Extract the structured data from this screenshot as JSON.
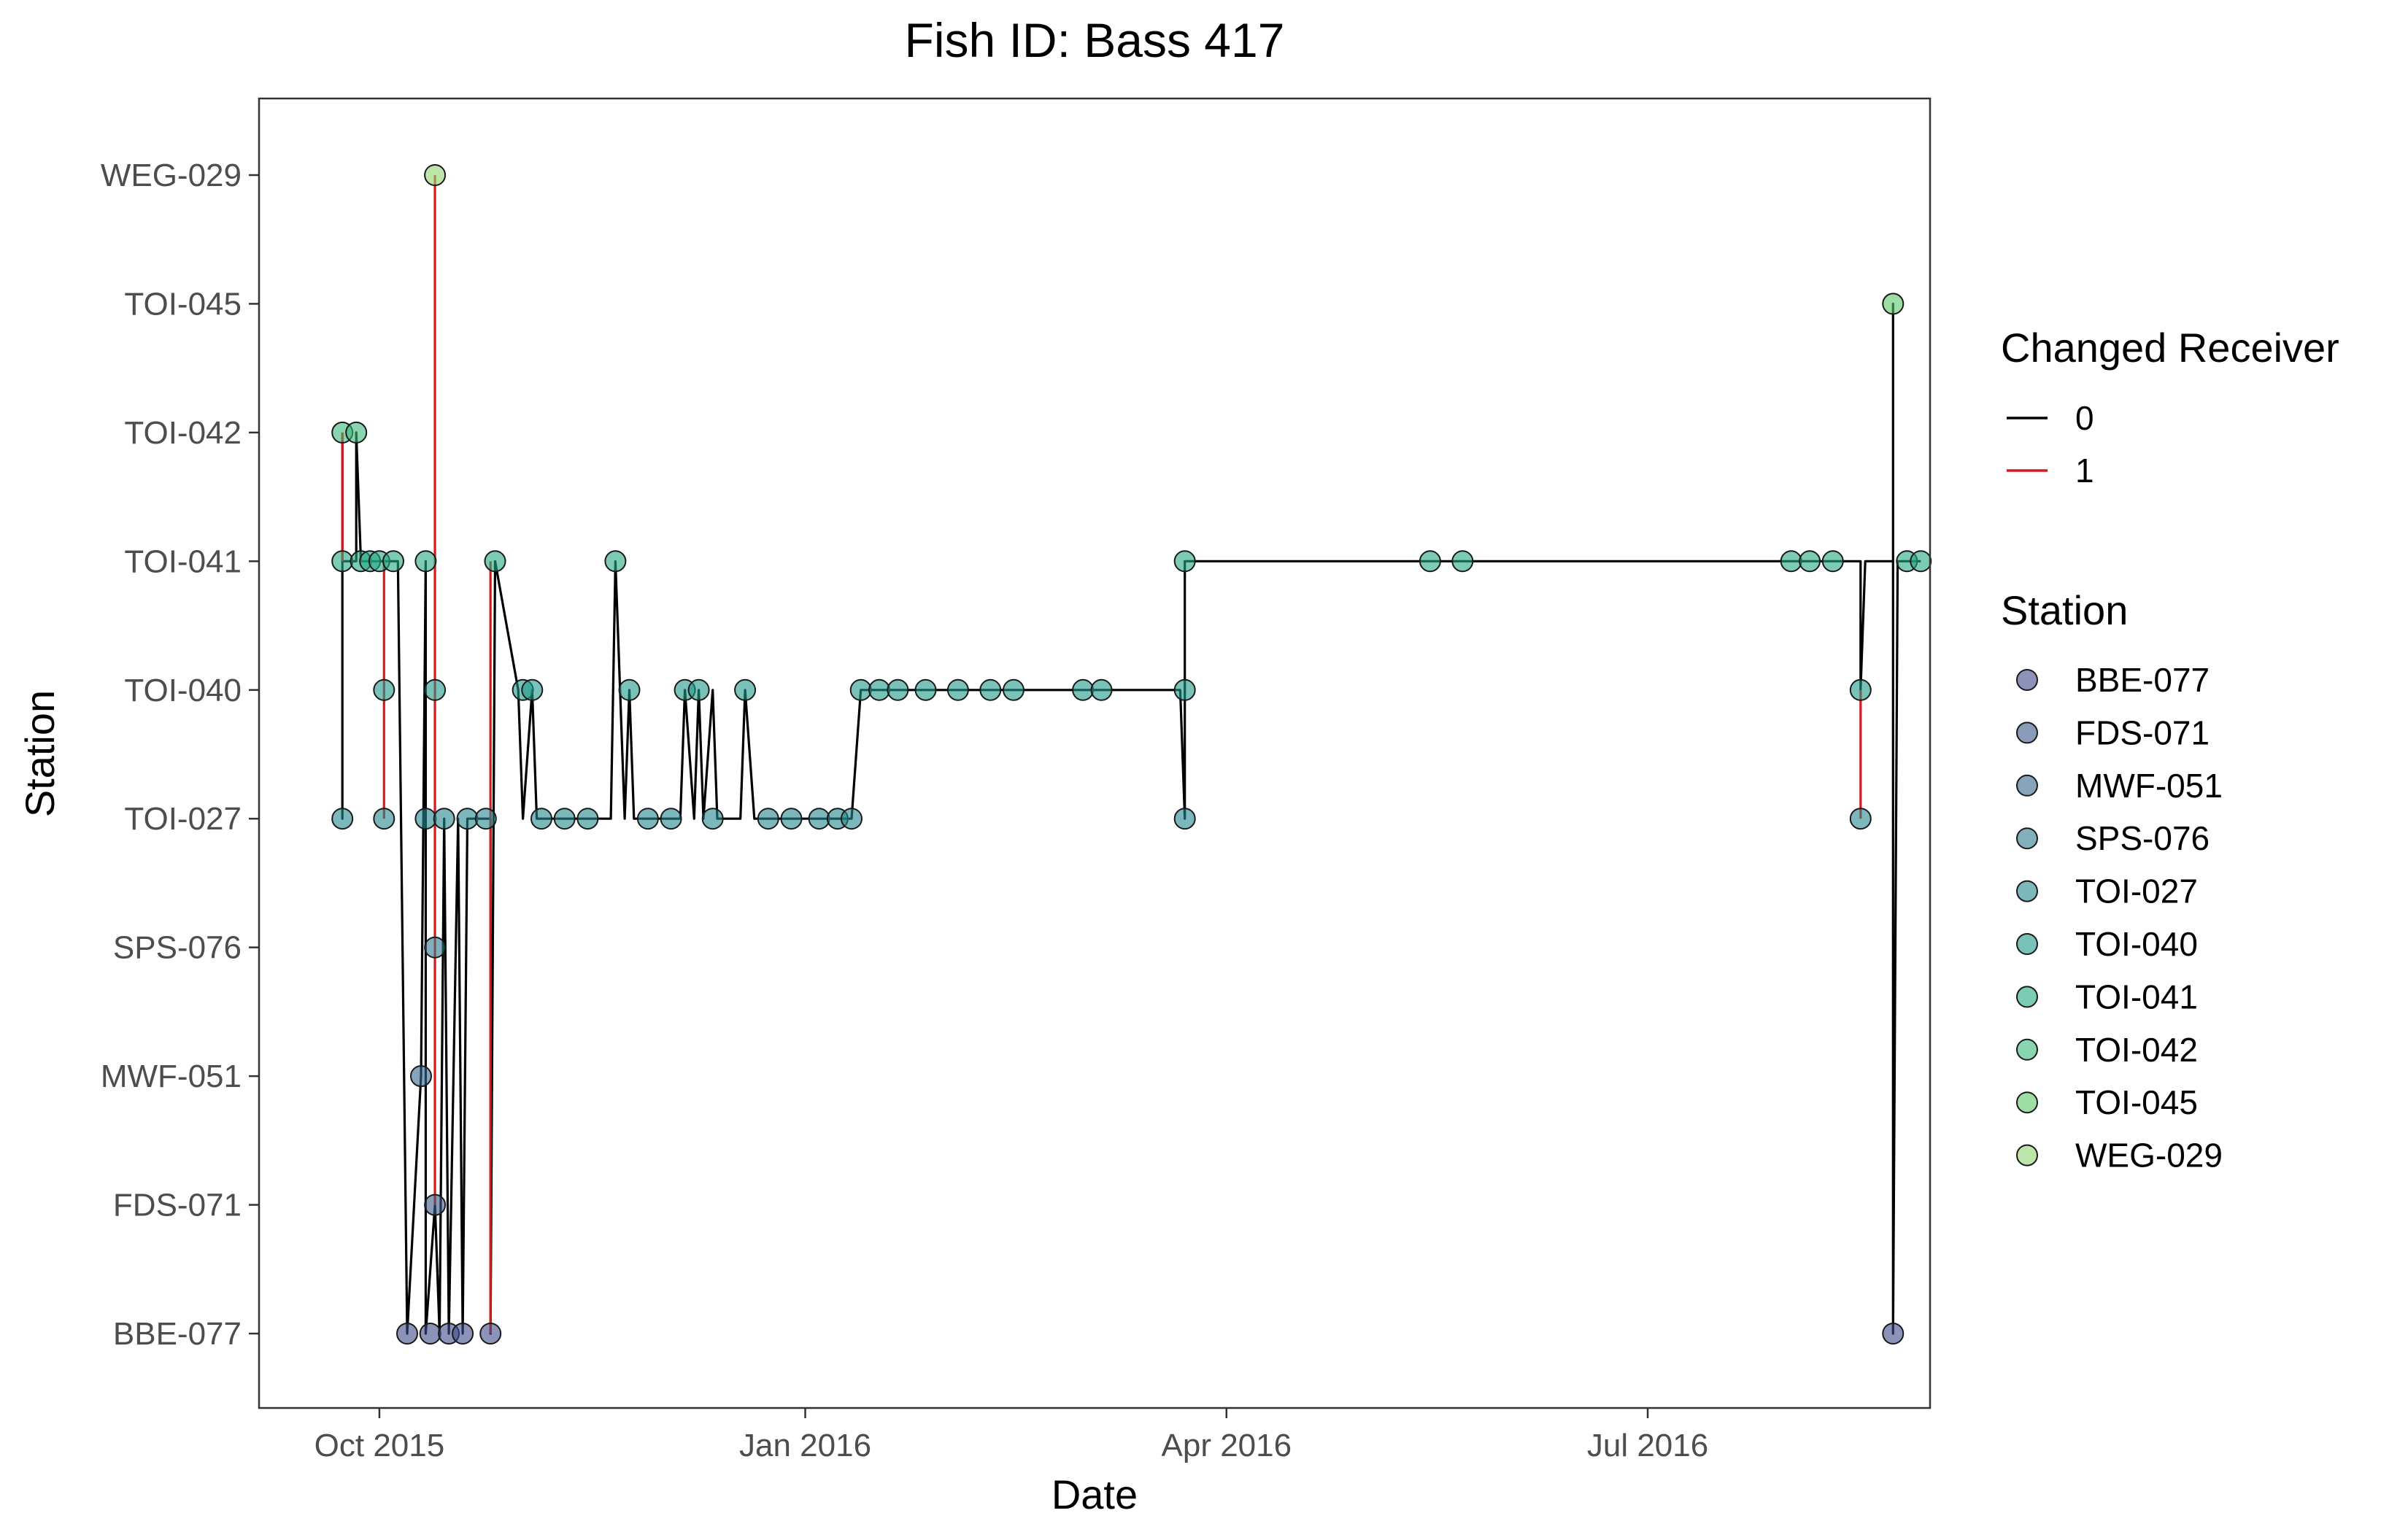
{
  "chart_data": {
    "type": "scatter",
    "title": "Fish ID: Bass 417",
    "xlabel": "Date",
    "ylabel": "Station",
    "x_type": "date",
    "xlim": [
      "2015-09-05",
      "2016-08-31"
    ],
    "x_ticks": [
      {
        "date": "2015-10-01",
        "label": "Oct 2015"
      },
      {
        "date": "2016-01-01",
        "label": "Jan 2016"
      },
      {
        "date": "2016-04-01",
        "label": "Apr 2016"
      },
      {
        "date": "2016-07-01",
        "label": "Jul 2016"
      }
    ],
    "categories": [
      "BBE-077",
      "FDS-071",
      "MWF-051",
      "SPS-076",
      "TOI-027",
      "TOI-040",
      "TOI-041",
      "TOI-042",
      "TOI-045",
      "WEG-029"
    ],
    "grid": false,
    "legend_position": "right",
    "legend": {
      "changed_receiver": {
        "title": "Changed Receiver",
        "items": [
          {
            "label": "0",
            "color": "#000000"
          },
          {
            "label": "1",
            "color": "#d7191c"
          }
        ]
      },
      "station": {
        "title": "Station",
        "items": [
          {
            "label": "BBE-077",
            "color": "#3e4b8a"
          },
          {
            "label": "FDS-071",
            "color": "#3b5a8c"
          },
          {
            "label": "MWF-051",
            "color": "#35688d"
          },
          {
            "label": "SPS-076",
            "color": "#2e7a8e"
          },
          {
            "label": "TOI-027",
            "color": "#24898e"
          },
          {
            "label": "TOI-040",
            "color": "#1f9a8a"
          },
          {
            "label": "TOI-041",
            "color": "#23a883"
          },
          {
            "label": "TOI-042",
            "color": "#3cb77a"
          },
          {
            "label": "TOI-045",
            "color": "#5ec868"
          },
          {
            "label": "WEG-029",
            "color": "#8fd670"
          }
        ]
      }
    },
    "series": [
      {
        "name": "0",
        "color": "#000000",
        "points": [
          {
            "x": "2015-09-23",
            "y": "TOI-042"
          },
          {
            "x": "2015-09-23",
            "y": "TOI-027"
          },
          {
            "x": "2015-09-23",
            "y": "TOI-041"
          },
          {
            "x": "2015-09-26",
            "y": "TOI-041"
          },
          {
            "x": "2015-09-26",
            "y": "TOI-042"
          },
          {
            "x": "2015-09-27",
            "y": "TOI-041"
          },
          {
            "x": "2015-10-02",
            "y": "TOI-041"
          },
          {
            "x": "2015-10-05",
            "y": "TOI-041"
          },
          {
            "x": "2015-10-07",
            "y": "BBE-077"
          },
          {
            "x": "2015-10-10",
            "y": "MWF-051"
          },
          {
            "x": "2015-10-11",
            "y": "TOI-041"
          },
          {
            "x": "2015-10-11",
            "y": "BBE-077"
          },
          {
            "x": "2015-10-13",
            "y": "FDS-071"
          },
          {
            "x": "2015-10-14",
            "y": "BBE-077"
          },
          {
            "x": "2015-10-15",
            "y": "TOI-027"
          },
          {
            "x": "2015-10-16",
            "y": "BBE-077"
          },
          {
            "x": "2015-10-18",
            "y": "TOI-027"
          },
          {
            "x": "2015-10-19",
            "y": "BBE-077"
          },
          {
            "x": "2015-10-20",
            "y": "TOI-027"
          },
          {
            "x": "2015-10-23",
            "y": "TOI-027"
          },
          {
            "x": "2015-10-25",
            "y": "TOI-027"
          },
          {
            "x": "2015-10-25",
            "y": "BBE-077"
          },
          {
            "x": "2015-10-26",
            "y": "TOI-041"
          },
          {
            "x": "2015-10-31",
            "y": "TOI-040"
          },
          {
            "x": "2015-11-01",
            "y": "TOI-027"
          },
          {
            "x": "2015-11-03",
            "y": "TOI-040"
          },
          {
            "x": "2015-11-04",
            "y": "TOI-027"
          },
          {
            "x": "2015-11-20",
            "y": "TOI-027"
          },
          {
            "x": "2015-11-21",
            "y": "TOI-041"
          },
          {
            "x": "2015-11-23",
            "y": "TOI-027"
          },
          {
            "x": "2015-11-24",
            "y": "TOI-040"
          },
          {
            "x": "2015-11-25",
            "y": "TOI-027"
          },
          {
            "x": "2015-12-05",
            "y": "TOI-027"
          },
          {
            "x": "2015-12-06",
            "y": "TOI-040"
          },
          {
            "x": "2015-12-08",
            "y": "TOI-027"
          },
          {
            "x": "2015-12-09",
            "y": "TOI-040"
          },
          {
            "x": "2015-12-10",
            "y": "TOI-027"
          },
          {
            "x": "2015-12-12",
            "y": "TOI-040"
          },
          {
            "x": "2015-12-13",
            "y": "TOI-027"
          },
          {
            "x": "2015-12-18",
            "y": "TOI-027"
          },
          {
            "x": "2015-12-19",
            "y": "TOI-040"
          },
          {
            "x": "2015-12-21",
            "y": "TOI-027"
          },
          {
            "x": "2016-01-11",
            "y": "TOI-027"
          },
          {
            "x": "2016-01-13",
            "y": "TOI-040"
          },
          {
            "x": "2016-01-25",
            "y": "TOI-040"
          },
          {
            "x": "2016-02-10",
            "y": "TOI-040"
          },
          {
            "x": "2016-03-05",
            "y": "TOI-040"
          },
          {
            "x": "2016-03-22",
            "y": "TOI-040"
          },
          {
            "x": "2016-03-23",
            "y": "TOI-027"
          },
          {
            "x": "2016-03-23",
            "y": "TOI-041"
          },
          {
            "x": "2016-05-15",
            "y": "TOI-041"
          },
          {
            "x": "2016-05-22",
            "y": "TOI-041"
          },
          {
            "x": "2016-08-01",
            "y": "TOI-041"
          },
          {
            "x": "2016-08-16",
            "y": "TOI-041"
          },
          {
            "x": "2016-08-16",
            "y": "TOI-040"
          },
          {
            "x": "2016-08-17",
            "y": "TOI-041"
          },
          {
            "x": "2016-08-23",
            "y": "TOI-041"
          },
          {
            "x": "2016-08-23",
            "y": "TOI-045"
          },
          {
            "x": "2016-08-23",
            "y": "BBE-077"
          },
          {
            "x": "2016-08-24",
            "y": "TOI-041"
          },
          {
            "x": "2016-08-29",
            "y": "TOI-041"
          }
        ]
      },
      {
        "name": "1",
        "color": "#d7191c",
        "segments": [
          [
            {
              "x": "2015-09-23",
              "y": "TOI-042"
            },
            {
              "x": "2015-09-23",
              "y": "TOI-041"
            }
          ],
          [
            {
              "x": "2015-10-02",
              "y": "TOI-041"
            },
            {
              "x": "2015-10-02",
              "y": "TOI-027"
            }
          ],
          [
            {
              "x": "2015-10-13",
              "y": "WEG-029"
            },
            {
              "x": "2015-10-13",
              "y": "FDS-071"
            }
          ],
          [
            {
              "x": "2015-10-25",
              "y": "TOI-041"
            },
            {
              "x": "2015-10-25",
              "y": "BBE-077"
            }
          ],
          [
            {
              "x": "2016-08-16",
              "y": "TOI-040"
            },
            {
              "x": "2016-08-16",
              "y": "TOI-027"
            }
          ]
        ]
      }
    ],
    "points": [
      {
        "x": "2015-09-23",
        "y": "TOI-042"
      },
      {
        "x": "2015-09-23",
        "y": "TOI-041"
      },
      {
        "x": "2015-09-23",
        "y": "TOI-027"
      },
      {
        "x": "2015-09-26",
        "y": "TOI-042"
      },
      {
        "x": "2015-09-27",
        "y": "TOI-041"
      },
      {
        "x": "2015-09-29",
        "y": "TOI-041"
      },
      {
        "x": "2015-10-01",
        "y": "TOI-041"
      },
      {
        "x": "2015-10-02",
        "y": "TOI-040"
      },
      {
        "x": "2015-10-02",
        "y": "TOI-027"
      },
      {
        "x": "2015-10-04",
        "y": "TOI-041"
      },
      {
        "x": "2015-10-07",
        "y": "BBE-077"
      },
      {
        "x": "2015-10-10",
        "y": "MWF-051"
      },
      {
        "x": "2015-10-11",
        "y": "TOI-041"
      },
      {
        "x": "2015-10-11",
        "y": "TOI-027"
      },
      {
        "x": "2015-10-12",
        "y": "BBE-077"
      },
      {
        "x": "2015-10-13",
        "y": "WEG-029"
      },
      {
        "x": "2015-10-13",
        "y": "TOI-040"
      },
      {
        "x": "2015-10-13",
        "y": "SPS-076"
      },
      {
        "x": "2015-10-13",
        "y": "FDS-071"
      },
      {
        "x": "2015-10-15",
        "y": "TOI-027"
      },
      {
        "x": "2015-10-16",
        "y": "BBE-077"
      },
      {
        "x": "2015-10-19",
        "y": "BBE-077"
      },
      {
        "x": "2015-10-20",
        "y": "TOI-027"
      },
      {
        "x": "2015-10-24",
        "y": "TOI-027"
      },
      {
        "x": "2015-10-25",
        "y": "BBE-077"
      },
      {
        "x": "2015-10-26",
        "y": "TOI-041"
      },
      {
        "x": "2015-11-01",
        "y": "TOI-040"
      },
      {
        "x": "2015-11-03",
        "y": "TOI-040"
      },
      {
        "x": "2015-11-05",
        "y": "TOI-027"
      },
      {
        "x": "2015-11-10",
        "y": "TOI-027"
      },
      {
        "x": "2015-11-15",
        "y": "TOI-027"
      },
      {
        "x": "2015-11-21",
        "y": "TOI-041"
      },
      {
        "x": "2015-11-24",
        "y": "TOI-040"
      },
      {
        "x": "2015-11-28",
        "y": "TOI-027"
      },
      {
        "x": "2015-12-03",
        "y": "TOI-027"
      },
      {
        "x": "2015-12-06",
        "y": "TOI-040"
      },
      {
        "x": "2015-12-09",
        "y": "TOI-040"
      },
      {
        "x": "2015-12-12",
        "y": "TOI-027"
      },
      {
        "x": "2015-12-19",
        "y": "TOI-040"
      },
      {
        "x": "2015-12-24",
        "y": "TOI-027"
      },
      {
        "x": "2015-12-29",
        "y": "TOI-027"
      },
      {
        "x": "2016-01-04",
        "y": "TOI-027"
      },
      {
        "x": "2016-01-08",
        "y": "TOI-027"
      },
      {
        "x": "2016-01-11",
        "y": "TOI-027"
      },
      {
        "x": "2016-01-13",
        "y": "TOI-040"
      },
      {
        "x": "2016-01-17",
        "y": "TOI-040"
      },
      {
        "x": "2016-01-21",
        "y": "TOI-040"
      },
      {
        "x": "2016-01-27",
        "y": "TOI-040"
      },
      {
        "x": "2016-02-03",
        "y": "TOI-040"
      },
      {
        "x": "2016-02-10",
        "y": "TOI-040"
      },
      {
        "x": "2016-02-15",
        "y": "TOI-040"
      },
      {
        "x": "2016-03-01",
        "y": "TOI-040"
      },
      {
        "x": "2016-03-05",
        "y": "TOI-040"
      },
      {
        "x": "2016-03-23",
        "y": "TOI-041"
      },
      {
        "x": "2016-03-23",
        "y": "TOI-040"
      },
      {
        "x": "2016-03-23",
        "y": "TOI-027"
      },
      {
        "x": "2016-05-15",
        "y": "TOI-041"
      },
      {
        "x": "2016-05-22",
        "y": "TOI-041"
      },
      {
        "x": "2016-08-01",
        "y": "TOI-041"
      },
      {
        "x": "2016-08-05",
        "y": "TOI-041"
      },
      {
        "x": "2016-08-10",
        "y": "TOI-041"
      },
      {
        "x": "2016-08-16",
        "y": "TOI-040"
      },
      {
        "x": "2016-08-16",
        "y": "TOI-027"
      },
      {
        "x": "2016-08-23",
        "y": "TOI-045"
      },
      {
        "x": "2016-08-23",
        "y": "BBE-077"
      },
      {
        "x": "2016-08-26",
        "y": "TOI-041"
      },
      {
        "x": "2016-08-29",
        "y": "TOI-041"
      }
    ]
  }
}
